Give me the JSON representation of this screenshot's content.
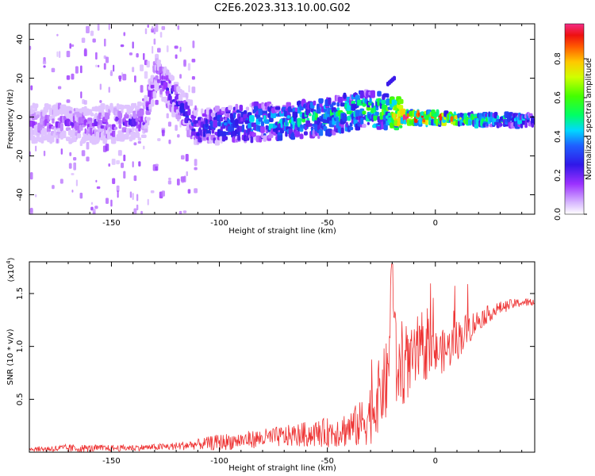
{
  "title": "C2E6.2023.313.10.00.G02",
  "colors": {
    "snr_line": "#ee3333",
    "colormap": [
      "#ffffff",
      "#9b30ff",
      "#3020e0",
      "#1f4fff",
      "#00d8ff",
      "#00ff40",
      "#c8ff00",
      "#ffc400",
      "#ff5000",
      "#ee1010",
      "#f02080"
    ]
  },
  "chart_data": [
    {
      "type": "heatmap",
      "title": "C2E6.2023.313.10.00.G02",
      "xlabel": "Height of straight line (km)",
      "ylabel": "Frequency (Hz)",
      "xlim": [
        -188,
        46
      ],
      "ylim": [
        -50,
        48
      ],
      "x_ticks": [
        -150,
        -100,
        -50,
        0
      ],
      "y_ticks": [
        -40,
        -20,
        0,
        20,
        40
      ],
      "grid": false,
      "colorbar": {
        "label": "Normalized spectral amplitude",
        "range": [
          0.0,
          0.98
        ],
        "ticks": [
          "0.0",
          "0.2",
          "0.4",
          "0.6",
          "0.8"
        ]
      },
      "ridge": {
        "x": [
          -188,
          -160,
          -135,
          -129,
          -110,
          -90,
          -70,
          -50,
          -35,
          -22,
          -15,
          0,
          20,
          46
        ],
        "freq": [
          -3,
          -4,
          -2,
          22,
          -6,
          -3,
          -2,
          0,
          4,
          3,
          0,
          -0.5,
          -1.5,
          -1.5
        ],
        "amplitude": [
          0.18,
          0.2,
          0.22,
          0.25,
          0.32,
          0.42,
          0.5,
          0.52,
          0.55,
          0.62,
          0.95,
          0.9,
          0.6,
          0.45
        ]
      },
      "satellite_trace": {
        "x": [
          -22,
          -19
        ],
        "freq": [
          17,
          20
        ],
        "amplitude": 0.25
      }
    },
    {
      "type": "line",
      "xlabel": "Height of straight line (km)",
      "ylabel": "SNR (10 * v/v)",
      "y_multiplier": "(x10⁴)",
      "y_multiplier_base": "(x10",
      "y_multiplier_exp": "4",
      "xlim": [
        -188,
        46
      ],
      "ylim": [
        0,
        1.8
      ],
      "x_ticks": [
        -150,
        -100,
        -50,
        0
      ],
      "y_ticks": [
        0.5,
        1.0,
        1.5
      ],
      "y_tick_labels": [
        "0.5",
        "1.0",
        "1.5"
      ],
      "grid": false,
      "series": [
        {
          "color": "#ee3333",
          "x": [
            -188,
            -170,
            -150,
            -130,
            -120,
            -110,
            -100,
            -90,
            -80,
            -70,
            -60,
            -50,
            -40,
            -35,
            -30,
            -25,
            -22,
            -20,
            -18,
            -15,
            -10,
            -5,
            0,
            5,
            10,
            15,
            20,
            25,
            30,
            35,
            40,
            46
          ],
          "values": [
            0.03,
            0.04,
            0.04,
            0.05,
            0.06,
            0.08,
            0.1,
            0.12,
            0.14,
            0.16,
            0.18,
            0.2,
            0.24,
            0.28,
            0.4,
            0.62,
            0.72,
            1.78,
            0.78,
            0.82,
            0.9,
            0.98,
            0.96,
            0.98,
            1.08,
            1.18,
            1.26,
            1.32,
            1.37,
            1.4,
            1.42,
            1.42
          ],
          "noise_amplitude": [
            0.02,
            0.04,
            0.03,
            0.03,
            0.04,
            0.05,
            0.08,
            0.08,
            0.09,
            0.1,
            0.12,
            0.14,
            0.18,
            0.22,
            0.3,
            0.35,
            0.4,
            0.5,
            0.35,
            0.35,
            0.3,
            0.28,
            0.22,
            0.2,
            0.2,
            0.16,
            0.1,
            0.08,
            0.06,
            0.05,
            0.04,
            0.04
          ]
        }
      ]
    }
  ]
}
